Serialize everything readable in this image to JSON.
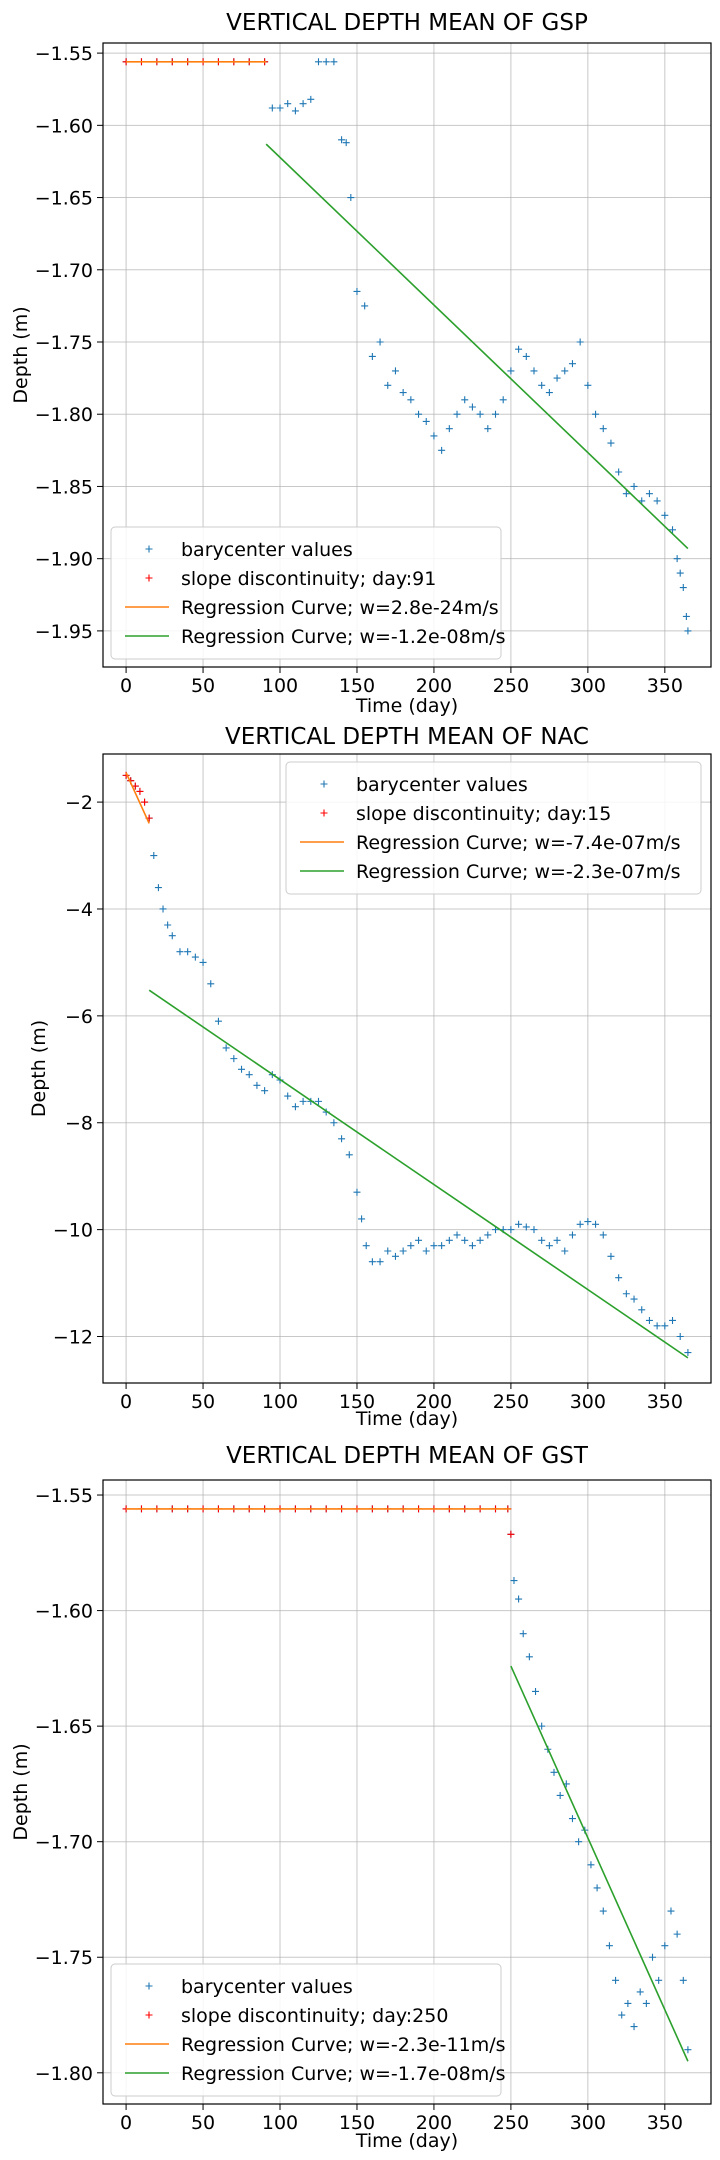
{
  "colors": {
    "blue": "#1f77b4",
    "red": "#ff0000",
    "orange": "#ff7f0e",
    "green": "#2ca02c"
  },
  "chart_data": [
    {
      "type": "scatter",
      "title": "VERTICAL DEPTH MEAN OF GSP",
      "xlabel": "Time (day)",
      "ylabel": "Depth (m)",
      "xlim": [
        -15,
        380
      ],
      "ylim": [
        -1.975,
        -1.543
      ],
      "xticks": [
        0,
        50,
        100,
        150,
        200,
        250,
        300,
        350
      ],
      "xtick_labels": [
        "0",
        "50",
        "100",
        "150",
        "200",
        "250",
        "300",
        "350"
      ],
      "yticks": [
        -1.55,
        -1.6,
        -1.65,
        -1.7,
        -1.75,
        -1.8,
        -1.85,
        -1.9,
        -1.95
      ],
      "ytick_labels": [
        "−1.55",
        "−1.60",
        "−1.65",
        "−1.70",
        "−1.75",
        "−1.80",
        "−1.85",
        "−1.90",
        "−1.95"
      ],
      "grid": true,
      "legend_position": "lower-left",
      "legend": [
        {
          "label": "barycenter values",
          "kind": "plus",
          "color": "#1f77b4"
        },
        {
          "label": "slope discontinuity; day:91",
          "kind": "plus",
          "color": "#ff0000"
        },
        {
          "label": "Regression Curve; w=2.8e-24m/s",
          "kind": "line",
          "color": "#ff7f0e"
        },
        {
          "label": "Regression Curve; w=-1.2e-08m/s",
          "kind": "line",
          "color": "#2ca02c"
        }
      ],
      "series": [
        {
          "name": "barycenter values",
          "type": "scatter",
          "marker": "+",
          "color": "#1f77b4",
          "x": [
            0,
            10,
            20,
            30,
            40,
            50,
            60,
            70,
            80,
            90,
            95,
            100,
            105,
            110,
            115,
            120,
            125,
            130,
            135,
            140,
            143,
            146,
            150,
            155,
            160,
            165,
            170,
            175,
            180,
            185,
            190,
            195,
            200,
            205,
            210,
            215,
            220,
            225,
            230,
            235,
            240,
            245,
            250,
            255,
            260,
            265,
            270,
            275,
            280,
            285,
            290,
            295,
            300,
            305,
            310,
            315,
            320,
            325,
            330,
            335,
            340,
            345,
            350,
            355,
            358,
            360,
            362,
            364,
            365
          ],
          "y": [
            -1.556,
            -1.556,
            -1.556,
            -1.556,
            -1.556,
            -1.556,
            -1.556,
            -1.556,
            -1.556,
            -1.556,
            -1.588,
            -1.588,
            -1.585,
            -1.59,
            -1.585,
            -1.582,
            -1.556,
            -1.556,
            -1.556,
            -1.61,
            -1.612,
            -1.65,
            -1.715,
            -1.725,
            -1.76,
            -1.75,
            -1.78,
            -1.77,
            -1.785,
            -1.79,
            -1.8,
            -1.805,
            -1.815,
            -1.825,
            -1.81,
            -1.8,
            -1.79,
            -1.795,
            -1.8,
            -1.81,
            -1.8,
            -1.79,
            -1.77,
            -1.755,
            -1.76,
            -1.77,
            -1.78,
            -1.785,
            -1.775,
            -1.77,
            -1.765,
            -1.75,
            -1.78,
            -1.8,
            -1.81,
            -1.82,
            -1.84,
            -1.855,
            -1.85,
            -1.86,
            -1.855,
            -1.86,
            -1.87,
            -1.88,
            -1.9,
            -1.91,
            -1.92,
            -1.94,
            -1.95
          ]
        },
        {
          "name": "slope discontinuity; day:91",
          "type": "scatter",
          "marker": "+",
          "color": "#ff0000",
          "x": [
            0,
            10,
            20,
            30,
            40,
            50,
            60,
            70,
            80,
            90
          ],
          "y": [
            -1.556,
            -1.556,
            -1.556,
            -1.556,
            -1.556,
            -1.556,
            -1.556,
            -1.556,
            -1.556,
            -1.556
          ]
        },
        {
          "name": "Regression Curve; w=2.8e-24m/s",
          "type": "line",
          "color": "#ff7f0e",
          "x": [
            0,
            91
          ],
          "y": [
            -1.556,
            -1.556
          ]
        },
        {
          "name": "Regression Curve; w=-1.2e-08m/s",
          "type": "line",
          "color": "#2ca02c",
          "x": [
            91,
            365
          ],
          "y": [
            -1.613,
            -1.893
          ]
        }
      ]
    },
    {
      "type": "scatter",
      "title": "VERTICAL DEPTH MEAN OF NAC",
      "xlabel": "Time (day)",
      "ylabel": "Depth (m)",
      "xlim": [
        -15,
        380
      ],
      "ylim": [
        -12.87,
        -1.1
      ],
      "xticks": [
        0,
        50,
        100,
        150,
        200,
        250,
        300,
        350
      ],
      "xtick_labels": [
        "0",
        "50",
        "100",
        "150",
        "200",
        "250",
        "300",
        "350"
      ],
      "yticks": [
        -2,
        -4,
        -6,
        -8,
        -10,
        -12
      ],
      "ytick_labels": [
        "−2",
        "−4",
        "−6",
        "−8",
        "−10",
        "−12"
      ],
      "grid": true,
      "legend_position": "upper-right",
      "legend": [
        {
          "label": "barycenter values",
          "kind": "plus",
          "color": "#1f77b4"
        },
        {
          "label": "slope discontinuity; day:15",
          "kind": "plus",
          "color": "#ff0000"
        },
        {
          "label": "Regression Curve; w=-7.4e-07m/s",
          "kind": "line",
          "color": "#ff7f0e"
        },
        {
          "label": "Regression Curve; w=-2.3e-07m/s",
          "kind": "line",
          "color": "#2ca02c"
        }
      ],
      "series": [
        {
          "name": "barycenter values",
          "type": "scatter",
          "marker": "+",
          "color": "#1f77b4",
          "x": [
            0,
            3,
            6,
            9,
            12,
            15,
            18,
            21,
            24,
            27,
            30,
            35,
            40,
            45,
            50,
            55,
            60,
            65,
            70,
            75,
            80,
            85,
            90,
            95,
            100,
            105,
            110,
            115,
            120,
            125,
            130,
            135,
            140,
            145,
            150,
            153,
            156,
            160,
            165,
            170,
            175,
            180,
            185,
            190,
            195,
            200,
            205,
            210,
            215,
            220,
            225,
            230,
            235,
            240,
            245,
            250,
            255,
            260,
            265,
            270,
            275,
            280,
            285,
            290,
            295,
            300,
            305,
            310,
            315,
            320,
            325,
            330,
            335,
            340,
            345,
            350,
            355,
            360,
            365
          ],
          "y": [
            -1.5,
            -1.6,
            -1.7,
            -1.8,
            -2.0,
            -2.3,
            -3.0,
            -3.6,
            -4.0,
            -4.3,
            -4.5,
            -4.8,
            -4.8,
            -4.9,
            -5.0,
            -5.4,
            -6.1,
            -6.6,
            -6.8,
            -7.0,
            -7.1,
            -7.3,
            -7.4,
            -7.1,
            -7.2,
            -7.5,
            -7.7,
            -7.6,
            -7.6,
            -7.6,
            -7.8,
            -8.0,
            -8.3,
            -8.6,
            -9.3,
            -9.8,
            -10.3,
            -10.6,
            -10.6,
            -10.4,
            -10.5,
            -10.4,
            -10.3,
            -10.2,
            -10.4,
            -10.3,
            -10.3,
            -10.2,
            -10.1,
            -10.2,
            -10.3,
            -10.2,
            -10.1,
            -10.0,
            -10.0,
            -10.0,
            -9.9,
            -9.95,
            -10.0,
            -10.2,
            -10.3,
            -10.2,
            -10.4,
            -10.1,
            -9.9,
            -9.85,
            -9.9,
            -10.1,
            -10.5,
            -10.9,
            -11.2,
            -11.3,
            -11.5,
            -11.7,
            -11.8,
            -11.8,
            -11.7,
            -12.0,
            -12.3
          ]
        },
        {
          "name": "slope discontinuity; day:15",
          "type": "scatter",
          "marker": "+",
          "color": "#ff0000",
          "x": [
            0,
            3,
            6,
            9,
            12,
            15
          ],
          "y": [
            -1.5,
            -1.6,
            -1.7,
            -1.8,
            -2.0,
            -2.3
          ]
        },
        {
          "name": "Regression Curve; w=-7.4e-07m/s",
          "type": "line",
          "color": "#ff7f0e",
          "x": [
            0,
            15
          ],
          "y": [
            -1.45,
            -2.4
          ]
        },
        {
          "name": "Regression Curve; w=-2.3e-07m/s",
          "type": "line",
          "color": "#2ca02c",
          "x": [
            15,
            365
          ],
          "y": [
            -5.52,
            -12.4
          ]
        }
      ]
    },
    {
      "type": "scatter",
      "title": "VERTICAL DEPTH MEAN OF GST",
      "xlabel": "Time (day)",
      "ylabel": "Depth (m)",
      "xlim": [
        -15,
        380
      ],
      "ylim": [
        -1.8135,
        -1.5435
      ],
      "xticks": [
        0,
        50,
        100,
        150,
        200,
        250,
        300,
        350
      ],
      "xtick_labels": [
        "0",
        "50",
        "100",
        "150",
        "200",
        "250",
        "300",
        "350"
      ],
      "yticks": [
        -1.55,
        -1.6,
        -1.65,
        -1.7,
        -1.75,
        -1.8
      ],
      "ytick_labels": [
        "−1.55",
        "−1.60",
        "−1.65",
        "−1.70",
        "−1.75",
        "−1.80"
      ],
      "grid": true,
      "legend_position": "lower-left",
      "legend": [
        {
          "label": "barycenter values",
          "kind": "plus",
          "color": "#1f77b4"
        },
        {
          "label": "slope discontinuity; day:250",
          "kind": "plus",
          "color": "#ff0000"
        },
        {
          "label": "Regression Curve; w=-2.3e-11m/s",
          "kind": "line",
          "color": "#ff7f0e"
        },
        {
          "label": "Regression Curve; w=-1.7e-08m/s",
          "kind": "line",
          "color": "#2ca02c"
        }
      ],
      "series": [
        {
          "name": "barycenter values",
          "type": "scatter",
          "marker": "+",
          "color": "#1f77b4",
          "x": [
            0,
            10,
            20,
            30,
            40,
            50,
            60,
            70,
            80,
            90,
            100,
            110,
            120,
            130,
            140,
            150,
            160,
            170,
            180,
            190,
            200,
            210,
            220,
            230,
            240,
            248,
            250,
            252,
            255,
            258,
            262,
            266,
            270,
            274,
            278,
            282,
            286,
            290,
            294,
            298,
            302,
            306,
            310,
            314,
            318,
            322,
            326,
            330,
            334,
            338,
            342,
            346,
            350,
            354,
            358,
            362,
            365
          ],
          "y": [
            -1.556,
            -1.556,
            -1.556,
            -1.556,
            -1.556,
            -1.556,
            -1.556,
            -1.556,
            -1.556,
            -1.556,
            -1.556,
            -1.556,
            -1.556,
            -1.556,
            -1.556,
            -1.556,
            -1.556,
            -1.556,
            -1.556,
            -1.556,
            -1.556,
            -1.556,
            -1.556,
            -1.556,
            -1.556,
            -1.556,
            -1.567,
            -1.587,
            -1.595,
            -1.61,
            -1.62,
            -1.635,
            -1.65,
            -1.66,
            -1.67,
            -1.68,
            -1.675,
            -1.69,
            -1.7,
            -1.695,
            -1.71,
            -1.72,
            -1.73,
            -1.745,
            -1.76,
            -1.775,
            -1.77,
            -1.78,
            -1.765,
            -1.77,
            -1.75,
            -1.76,
            -1.745,
            -1.73,
            -1.74,
            -1.76,
            -1.79
          ]
        },
        {
          "name": "slope discontinuity; day:250",
          "type": "scatter",
          "marker": "+",
          "color": "#ff0000",
          "x": [
            0,
            10,
            20,
            30,
            40,
            50,
            60,
            70,
            80,
            90,
            100,
            110,
            120,
            130,
            140,
            150,
            160,
            170,
            180,
            190,
            200,
            210,
            220,
            230,
            240,
            248,
            250
          ],
          "y": [
            -1.556,
            -1.556,
            -1.556,
            -1.556,
            -1.556,
            -1.556,
            -1.556,
            -1.556,
            -1.556,
            -1.556,
            -1.556,
            -1.556,
            -1.556,
            -1.556,
            -1.556,
            -1.556,
            -1.556,
            -1.556,
            -1.556,
            -1.556,
            -1.556,
            -1.556,
            -1.556,
            -1.556,
            -1.556,
            -1.556,
            -1.567
          ]
        },
        {
          "name": "Regression Curve; w=-2.3e-11m/s",
          "type": "line",
          "color": "#ff7f0e",
          "x": [
            0,
            250
          ],
          "y": [
            -1.556,
            -1.556
          ]
        },
        {
          "name": "Regression Curve; w=-1.7e-08m/s",
          "type": "line",
          "color": "#2ca02c",
          "x": [
            250,
            365
          ],
          "y": [
            -1.624,
            -1.795
          ]
        }
      ]
    }
  ]
}
